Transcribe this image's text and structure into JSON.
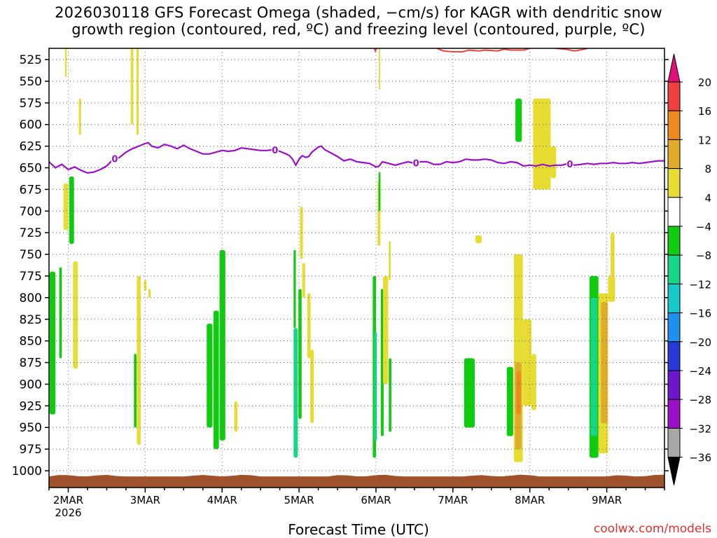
{
  "title_line1": "2026030118 GFS Forecast Omega (shaded, −cm/s) for KAGR with dendritic snow",
  "title_line2": "growth region (contoured, red, ºC) and freezing level (contoured, purple, ºC)",
  "credit": "coolwx.com/models",
  "chart_data": {
    "type": "heatmap",
    "title": "2026030118 GFS Forecast Omega (shaded, −cm/s) for KAGR with dendritic snow growth region (contoured, red, ºC) and freezing level (contoured, purple, ºC)",
    "xlabel": "Forecast Time (UTC)",
    "ylabel": "",
    "x_range_hours": [
      0,
      192
    ],
    "x_tick_hours": [
      6,
      30,
      54,
      78,
      102,
      126,
      150,
      174
    ],
    "x_tick_labels": [
      "2MAR",
      "3MAR",
      "4MAR",
      "5MAR",
      "6MAR",
      "7MAR",
      "8MAR",
      "9MAR"
    ],
    "x_first_year": "2026",
    "y_range_hpa": [
      512,
      1000
    ],
    "y_ticks": [
      525,
      550,
      575,
      600,
      625,
      650,
      675,
      700,
      725,
      750,
      775,
      800,
      825,
      850,
      875,
      900,
      925,
      950,
      975,
      1000
    ],
    "grid": true,
    "colorbar": {
      "bounds": [
        -36,
        -32,
        -28,
        -24,
        -20,
        -16,
        -12,
        -8,
        -4,
        4,
        8,
        12,
        16,
        20
      ],
      "labels": [
        "20",
        "16",
        "12",
        "8",
        "4",
        "−4",
        "−8",
        "−12",
        "−16",
        "−20",
        "−24",
        "−28",
        "−32",
        "−36"
      ],
      "colors": [
        "#a8a8a8",
        "#9a10c8",
        "#6a18c8",
        "#2a3ad6",
        "#1e90f0",
        "#16c8c8",
        "#14d888",
        "#10cc10",
        "#ffffff",
        "#e6dc32",
        "#e0aa2a",
        "#ec8a22",
        "#f04040"
      ],
      "over_color": "#e0107a",
      "under_color": "#000000"
    },
    "omega_cells": [
      {
        "t0": 0.2,
        "t1": 2.0,
        "p0": 770,
        "p1": 935,
        "v": -6
      },
      {
        "t0": 3.2,
        "t1": 4.0,
        "p0": 765,
        "p1": 870,
        "v": -6
      },
      {
        "t0": 4.5,
        "t1": 6.0,
        "p0": 668,
        "p1": 722,
        "v": 5
      },
      {
        "t0": 6.3,
        "t1": 7.8,
        "p0": 660,
        "p1": 738,
        "v": -6
      },
      {
        "t0": 7.5,
        "t1": 9.0,
        "p0": 758,
        "p1": 882,
        "v": 5
      },
      {
        "t0": 5.0,
        "t1": 5.5,
        "p0": 512,
        "p1": 545,
        "v": 5
      },
      {
        "t0": 9.3,
        "t1": 10.0,
        "p0": 570,
        "p1": 612,
        "v": 5
      },
      {
        "t0": 25.5,
        "t1": 26.3,
        "p0": 512,
        "p1": 600,
        "v": 5
      },
      {
        "t0": 27.3,
        "t1": 28.0,
        "p0": 512,
        "p1": 612,
        "v": 5
      },
      {
        "t0": 26.5,
        "t1": 27.3,
        "p0": 865,
        "p1": 950,
        "v": -6
      },
      {
        "t0": 27.4,
        "t1": 28.6,
        "p0": 775,
        "p1": 970,
        "v": 5
      },
      {
        "t0": 29.6,
        "t1": 30.4,
        "p0": 780,
        "p1": 792,
        "v": 5
      },
      {
        "t0": 31.0,
        "t1": 31.7,
        "p0": 790,
        "p1": 800,
        "v": 5
      },
      {
        "t0": 49.2,
        "t1": 51.0,
        "p0": 830,
        "p1": 950,
        "v": -6
      },
      {
        "t0": 51.3,
        "t1": 53.0,
        "p0": 815,
        "p1": 975,
        "v": -6
      },
      {
        "t0": 53.2,
        "t1": 55.0,
        "p0": 745,
        "p1": 965,
        "v": -6
      },
      {
        "t0": 57.8,
        "t1": 58.8,
        "p0": 920,
        "p1": 955,
        "v": 5
      },
      {
        "t0": 76.3,
        "t1": 77.0,
        "p0": 745,
        "p1": 835,
        "v": -6
      },
      {
        "t0": 76.3,
        "t1": 77.6,
        "p0": 835,
        "p1": 985,
        "v": -12
      },
      {
        "t0": 77.8,
        "t1": 78.8,
        "p0": 790,
        "p1": 940,
        "v": -6
      },
      {
        "t0": 78.3,
        "t1": 79.2,
        "p0": 695,
        "p1": 755,
        "v": 5
      },
      {
        "t0": 79.0,
        "t1": 79.9,
        "p0": 760,
        "p1": 800,
        "v": 5
      },
      {
        "t0": 80.6,
        "t1": 81.6,
        "p0": 795,
        "p1": 870,
        "v": 5
      },
      {
        "t0": 81.5,
        "t1": 82.6,
        "p0": 860,
        "p1": 945,
        "v": 5
      },
      {
        "t0": 101.0,
        "t1": 102.0,
        "p0": 775,
        "p1": 985,
        "v": -6
      },
      {
        "t0": 101.4,
        "t1": 102.3,
        "p0": 840,
        "p1": 965,
        "v": -12
      },
      {
        "t0": 102.5,
        "t1": 103.4,
        "p0": 665,
        "p1": 740,
        "v": 5
      },
      {
        "t0": 103.5,
        "t1": 104.4,
        "p0": 790,
        "p1": 960,
        "v": -6
      },
      {
        "t0": 104.2,
        "t1": 105.8,
        "p0": 775,
        "p1": 900,
        "v": 5
      },
      {
        "t0": 106.0,
        "t1": 106.8,
        "p0": 870,
        "p1": 955,
        "v": -6
      },
      {
        "t0": 106.0,
        "t1": 106.6,
        "p0": 735,
        "p1": 780,
        "v": 5
      },
      {
        "t0": 102.8,
        "t1": 103.4,
        "p0": 655,
        "p1": 700,
        "v": -6
      },
      {
        "t0": 102.9,
        "t1": 103.3,
        "p0": 512,
        "p1": 560,
        "v": 5
      },
      {
        "t0": 129.5,
        "t1": 132.8,
        "p0": 870,
        "p1": 950,
        "v": -6
      },
      {
        "t0": 133.0,
        "t1": 135.0,
        "p0": 728,
        "p1": 737,
        "v": 5
      },
      {
        "t0": 145.5,
        "t1": 147.5,
        "p0": 570,
        "p1": 620,
        "v": -6
      },
      {
        "t0": 145.0,
        "t1": 147.8,
        "p0": 750,
        "p1": 990,
        "v": 5
      },
      {
        "t0": 145.4,
        "t1": 147.4,
        "p0": 875,
        "p1": 975,
        "v": 8
      },
      {
        "t0": 145.8,
        "t1": 147.2,
        "p0": 885,
        "p1": 935,
        "v": 12
      },
      {
        "t0": 147.8,
        "t1": 150.5,
        "p0": 825,
        "p1": 925,
        "v": 5
      },
      {
        "t0": 150.5,
        "t1": 152.0,
        "p0": 865,
        "p1": 930,
        "v": 5
      },
      {
        "t0": 142.8,
        "t1": 144.8,
        "p0": 880,
        "p1": 960,
        "v": -6
      },
      {
        "t0": 151.0,
        "t1": 156.5,
        "p0": 570,
        "p1": 675,
        "v": 5
      },
      {
        "t0": 156.5,
        "t1": 158.2,
        "p0": 625,
        "p1": 662,
        "v": 5
      },
      {
        "t0": 168.6,
        "t1": 171.4,
        "p0": 775,
        "p1": 985,
        "v": -6
      },
      {
        "t0": 169.0,
        "t1": 171.0,
        "p0": 800,
        "p1": 960,
        "v": -12
      },
      {
        "t0": 171.4,
        "t1": 174.4,
        "p0": 795,
        "p1": 980,
        "v": 5
      },
      {
        "t0": 172.2,
        "t1": 174.2,
        "p0": 805,
        "p1": 945,
        "v": 8
      },
      {
        "t0": 174.4,
        "t1": 176.6,
        "p0": 775,
        "p1": 805,
        "v": 5
      },
      {
        "t0": 175.2,
        "t1": 176.4,
        "p0": 725,
        "p1": 780,
        "v": 5
      }
    ],
    "freezing_level": {
      "label": "0",
      "label_hours": [
        20.5,
        70.5,
        114.5,
        162.5
      ],
      "points": [
        [
          0,
          643
        ],
        [
          2,
          650
        ],
        [
          4,
          646
        ],
        [
          6,
          652
        ],
        [
          8,
          649
        ],
        [
          10,
          653
        ],
        [
          12,
          656
        ],
        [
          14,
          655
        ],
        [
          16,
          652
        ],
        [
          18,
          648
        ],
        [
          19,
          644
        ],
        [
          20,
          640
        ],
        [
          22,
          638
        ],
        [
          24,
          632
        ],
        [
          26,
          628
        ],
        [
          28,
          625
        ],
        [
          30,
          622
        ],
        [
          31,
          621
        ],
        [
          32,
          625
        ],
        [
          34,
          627
        ],
        [
          36,
          623
        ],
        [
          38,
          625
        ],
        [
          40,
          628
        ],
        [
          42,
          624
        ],
        [
          44,
          628
        ],
        [
          46,
          631
        ],
        [
          48,
          634
        ],
        [
          50,
          634
        ],
        [
          52,
          632
        ],
        [
          54,
          630
        ],
        [
          56,
          631
        ],
        [
          58,
          630
        ],
        [
          60,
          627
        ],
        [
          62,
          628
        ],
        [
          64,
          629
        ],
        [
          66,
          630
        ],
        [
          68,
          630
        ],
        [
          70,
          629
        ],
        [
          72,
          631
        ],
        [
          74,
          634
        ],
        [
          75,
          636
        ],
        [
          76,
          640
        ],
        [
          77,
          647
        ],
        [
          78,
          640
        ],
        [
          79,
          636
        ],
        [
          80,
          638
        ],
        [
          81,
          637
        ],
        [
          82,
          632
        ],
        [
          84,
          626
        ],
        [
          85,
          625
        ],
        [
          86,
          629
        ],
        [
          88,
          633
        ],
        [
          90,
          637
        ],
        [
          92,
          642
        ],
        [
          94,
          640
        ],
        [
          96,
          643
        ],
        [
          98,
          644
        ],
        [
          100,
          645
        ],
        [
          102,
          649
        ],
        [
          103,
          648
        ],
        [
          104,
          643
        ],
        [
          106,
          645
        ],
        [
          108,
          647
        ],
        [
          110,
          645
        ],
        [
          112,
          643
        ],
        [
          114,
          645
        ],
        [
          116,
          643
        ],
        [
          118,
          643
        ],
        [
          120,
          646
        ],
        [
          122,
          646
        ],
        [
          124,
          643
        ],
        [
          126,
          644
        ],
        [
          128,
          643
        ],
        [
          130,
          640
        ],
        [
          132,
          641
        ],
        [
          134,
          641
        ],
        [
          136,
          640
        ],
        [
          138,
          641
        ],
        [
          140,
          644
        ],
        [
          142,
          645
        ],
        [
          144,
          643
        ],
        [
          146,
          644
        ],
        [
          148,
          648
        ],
        [
          150,
          647
        ],
        [
          152,
          648
        ],
        [
          154,
          646
        ],
        [
          156,
          648
        ],
        [
          158,
          647
        ],
        [
          160,
          647
        ],
        [
          162,
          645
        ],
        [
          164,
          647
        ],
        [
          166,
          646
        ],
        [
          168,
          645
        ],
        [
          170,
          646
        ],
        [
          172,
          645
        ],
        [
          174,
          645
        ],
        [
          176,
          644
        ],
        [
          178,
          645
        ],
        [
          180,
          645
        ],
        [
          182,
          644
        ],
        [
          184,
          645
        ],
        [
          186,
          644
        ],
        [
          188,
          643
        ],
        [
          190,
          642
        ],
        [
          192,
          642
        ]
      ]
    },
    "dgz_contour": {
      "segments": [
        [
          [
            101.5,
            512
          ],
          [
            101.8,
            515
          ],
          [
            102.2,
            512
          ]
        ],
        [
          [
            121,
            512
          ],
          [
            123,
            515
          ],
          [
            126,
            516
          ],
          [
            129,
            516
          ],
          [
            131,
            514
          ],
          [
            134,
            515
          ],
          [
            136,
            514
          ],
          [
            140,
            515
          ],
          [
            142,
            513
          ],
          [
            144,
            514
          ],
          [
            148,
            514
          ],
          [
            150,
            512
          ]
        ],
        [
          [
            158,
            512
          ],
          [
            161,
            513
          ],
          [
            164,
            515
          ],
          [
            167,
            513
          ],
          [
            168,
            512
          ]
        ]
      ]
    },
    "terrain": {
      "p0": 1005,
      "p1": 1010
    }
  }
}
